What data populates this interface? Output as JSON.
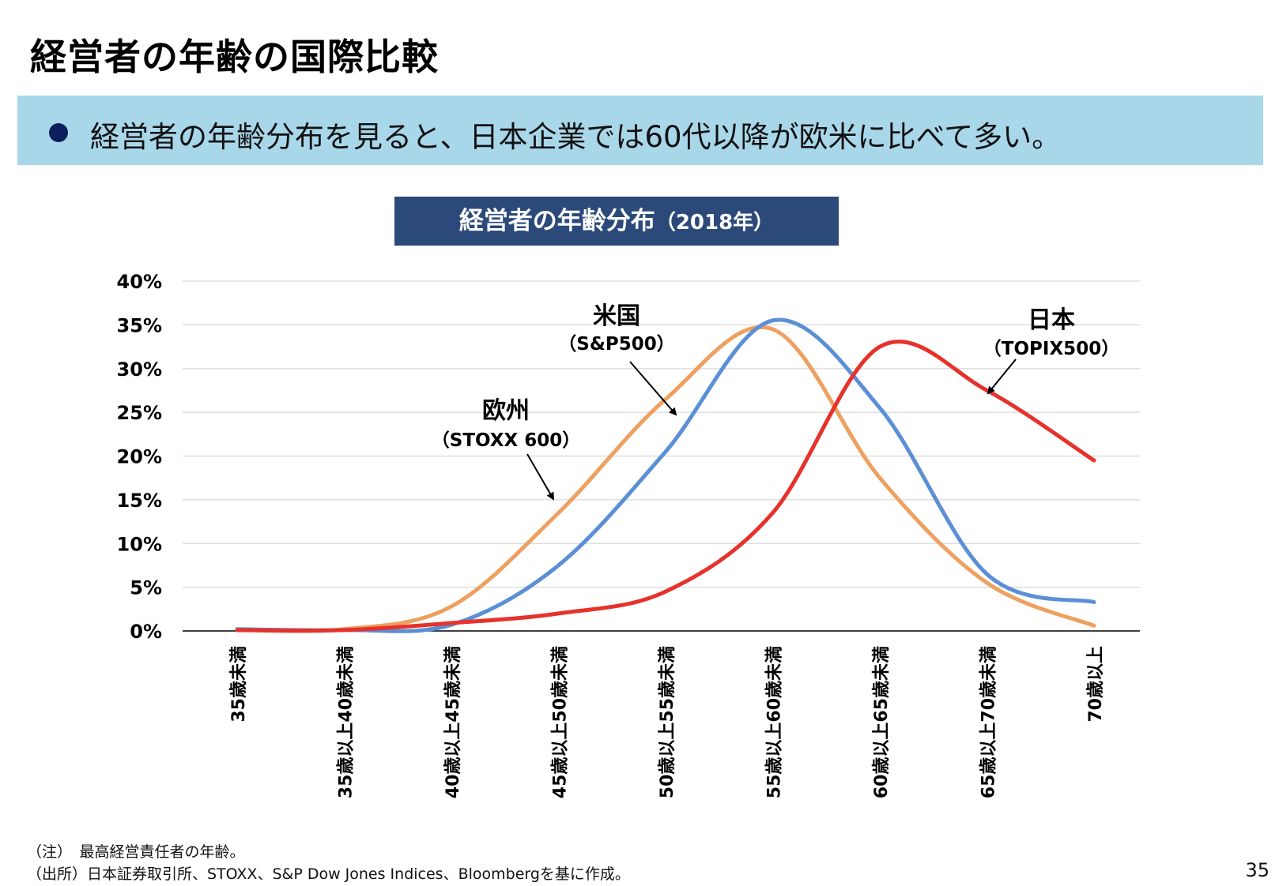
{
  "header": {
    "title": "経営者の年齢の国際比較",
    "summary": "経営者の年齢分布を見ると、日本企業では60代以降が欧米に比べて多い。"
  },
  "chart_title": {
    "main": "経営者の年齢分布",
    "year": "（2018年）"
  },
  "chart_data": {
    "type": "line",
    "categories": [
      "35歳未満",
      "35歳以上40歳未満",
      "40歳以上45歳未満",
      "45歳以上50歳未満",
      "50歳以上55歳未満",
      "55歳以上60歳未満",
      "60歳以上65歳未満",
      "65歳以上70歳未満",
      "70歳以上"
    ],
    "y_ticks": [
      "0%",
      "5%",
      "10%",
      "15%",
      "20%",
      "25%",
      "30%",
      "35%",
      "40%"
    ],
    "ylim": [
      0,
      40
    ],
    "grid": true,
    "series": [
      {
        "name": "米国",
        "sub": "（S&P500）",
        "color": "#5b8fd6",
        "values": [
          0.2,
          0.1,
          0.7,
          7.5,
          20.5,
          35.5,
          25.5,
          6.5,
          3.3
        ]
      },
      {
        "name": "欧州",
        "sub": "（STOXX 600）",
        "color": "#eda060",
        "values": [
          0.1,
          0.2,
          2.8,
          13.5,
          26.5,
          34.5,
          17.5,
          5.5,
          0.6
        ]
      },
      {
        "name": "日本",
        "sub": "（TOPIX500）",
        "color": "#e6322b",
        "values": [
          0.1,
          0.1,
          0.9,
          2.0,
          4.5,
          13.5,
          32.5,
          27.5,
          19.5
        ]
      }
    ]
  },
  "notes": {
    "note1": "（注）　最高経営責任者の年齢。",
    "note2": "（出所）日本証券取引所、STOXX、S&P Dow Jones Indices、Bloombergを基に作成。"
  },
  "page_number": "35"
}
